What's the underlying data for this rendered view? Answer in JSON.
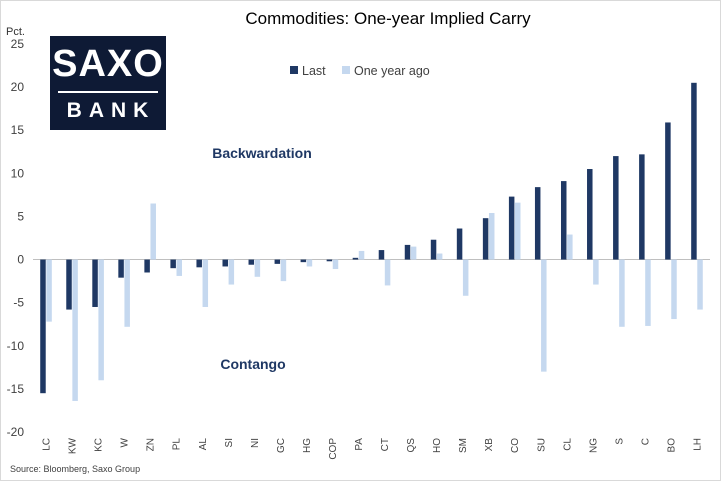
{
  "logo": {
    "top": "SAXO",
    "bottom": "BANK"
  },
  "chart_data": {
    "type": "bar",
    "title": "Commodities: One-year Implied Carry",
    "ylabel": "Pct.",
    "xlabel": "",
    "ylim": [
      -20,
      25
    ],
    "yticks": [
      -20,
      -15,
      -10,
      -5,
      0,
      5,
      10,
      15,
      20,
      25
    ],
    "grid": false,
    "legend_position": "top-left",
    "categories": [
      "LC",
      "KW",
      "KC",
      "W",
      "ZN",
      "PL",
      "AL",
      "SI",
      "NI",
      "GC",
      "HG",
      "COP",
      "PA",
      "CT",
      "QS",
      "HO",
      "SM",
      "XB",
      "CO",
      "SU",
      "CL",
      "NG",
      "S",
      "C",
      "BO",
      "LH"
    ],
    "series": [
      {
        "name": "Last",
        "color": "#1f3864",
        "values": [
          -15.5,
          -5.8,
          -5.5,
          -2.1,
          -1.5,
          -1.0,
          -0.9,
          -0.8,
          -0.6,
          -0.5,
          -0.3,
          -0.2,
          0.2,
          1.1,
          1.7,
          2.3,
          3.6,
          4.8,
          7.3,
          8.4,
          9.1,
          10.5,
          12.0,
          12.2,
          15.9,
          20.5
        ]
      },
      {
        "name": "One year ago",
        "color": "#c5d8ef",
        "values": [
          -7.2,
          -16.4,
          -14.0,
          -7.8,
          6.5,
          -1.9,
          -5.5,
          -2.9,
          -2.0,
          -2.5,
          -0.8,
          -1.1,
          1.0,
          -3.0,
          1.5,
          0.7,
          -4.2,
          5.4,
          6.6,
          -13.0,
          2.9,
          -2.9,
          -7.8,
          -7.7,
          -6.9,
          -5.8
        ]
      }
    ],
    "annotations": [
      {
        "text": "Backwardation",
        "color": "#1f3864"
      },
      {
        "text": "Contango",
        "color": "#1f3864"
      }
    ],
    "source": "Source: Bloomberg, Saxo Group"
  }
}
